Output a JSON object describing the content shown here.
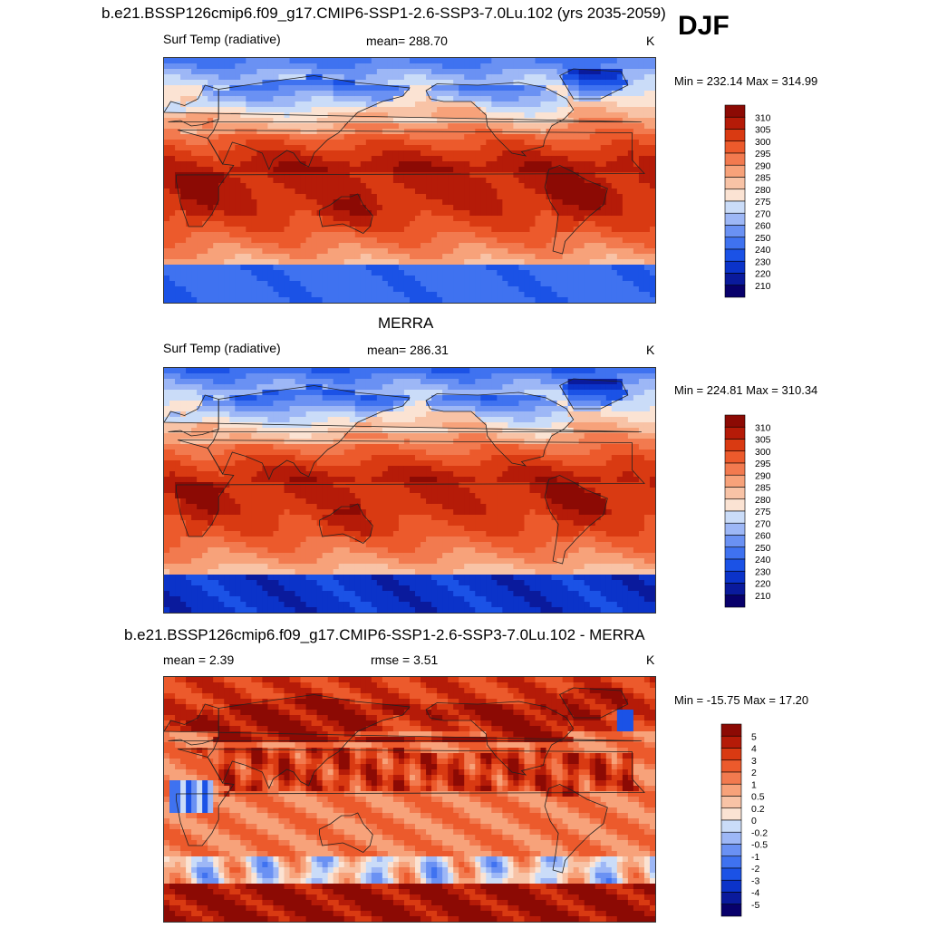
{
  "season": "DJF",
  "panels": [
    {
      "title": "b.e21.BSSP126cmip6.f09_g17.CMIP6-SSP1-2.6-SSP3-7.0Lu.102 (yrs 2035-2059)",
      "left_label": "Surf Temp (radiative)",
      "center_label": "mean= 288.70",
      "units": "K",
      "minmax": "Min = 232.14 Max = 314.99",
      "kind": "abs"
    },
    {
      "title": "MERRA",
      "left_label": "Surf Temp (radiative)",
      "center_label": "mean= 286.31",
      "units": "K",
      "minmax": "Min = 224.81 Max = 310.34",
      "kind": "abs"
    },
    {
      "title": "b.e21.BSSP126cmip6.f09_g17.CMIP6-SSP1-2.6-SSP3-7.0Lu.102 - MERRA",
      "left_label": "mean =   2.39",
      "center_label": "rmse =   3.51",
      "units": "K",
      "minmax": "Min = -15.75 Max =  17.20",
      "kind": "diff"
    }
  ],
  "chart_data": [
    {
      "type": "heatmap",
      "colorbar_levels": [
        "210",
        "220",
        "230",
        "240",
        "250",
        "260",
        "270",
        "275",
        "280",
        "285",
        "290",
        "295",
        "300",
        "305",
        "310"
      ],
      "colorbar_colors": [
        "#08006b",
        "#0a1a9c",
        "#0b33c9",
        "#1b52e6",
        "#3f72f0",
        "#6a91f3",
        "#9db7f6",
        "#cadcf8",
        "#fbe3d3",
        "#f8c3a6",
        "#f7a27a",
        "#f27a4f",
        "#ec5a2c",
        "#d93a12",
        "#b51b08",
        "#8c0a04"
      ]
    },
    {
      "type": "heatmap",
      "colorbar_levels": [
        "210",
        "220",
        "230",
        "240",
        "250",
        "260",
        "270",
        "275",
        "280",
        "285",
        "290",
        "295",
        "300",
        "305",
        "310"
      ],
      "colorbar_colors": [
        "#08006b",
        "#0a1a9c",
        "#0b33c9",
        "#1b52e6",
        "#3f72f0",
        "#6a91f3",
        "#9db7f6",
        "#cadcf8",
        "#fbe3d3",
        "#f8c3a6",
        "#f7a27a",
        "#f27a4f",
        "#ec5a2c",
        "#d93a12",
        "#b51b08",
        "#8c0a04"
      ]
    },
    {
      "type": "heatmap",
      "colorbar_levels": [
        "-5",
        "-4",
        "-3",
        "-2",
        "-1",
        "-0.5",
        "-0.2",
        "0",
        "0.2",
        "0.5",
        "1",
        "2",
        "3",
        "4",
        "5"
      ],
      "colorbar_colors": [
        "#08006b",
        "#0a1a9c",
        "#0b33c9",
        "#1b52e6",
        "#3f72f0",
        "#6a91f3",
        "#9db7f6",
        "#cadcf8",
        "#fbe3d3",
        "#f8c3a6",
        "#f7a27a",
        "#f27a4f",
        "#ec5a2c",
        "#d93a12",
        "#b51b08",
        "#8c0a04"
      ]
    }
  ]
}
